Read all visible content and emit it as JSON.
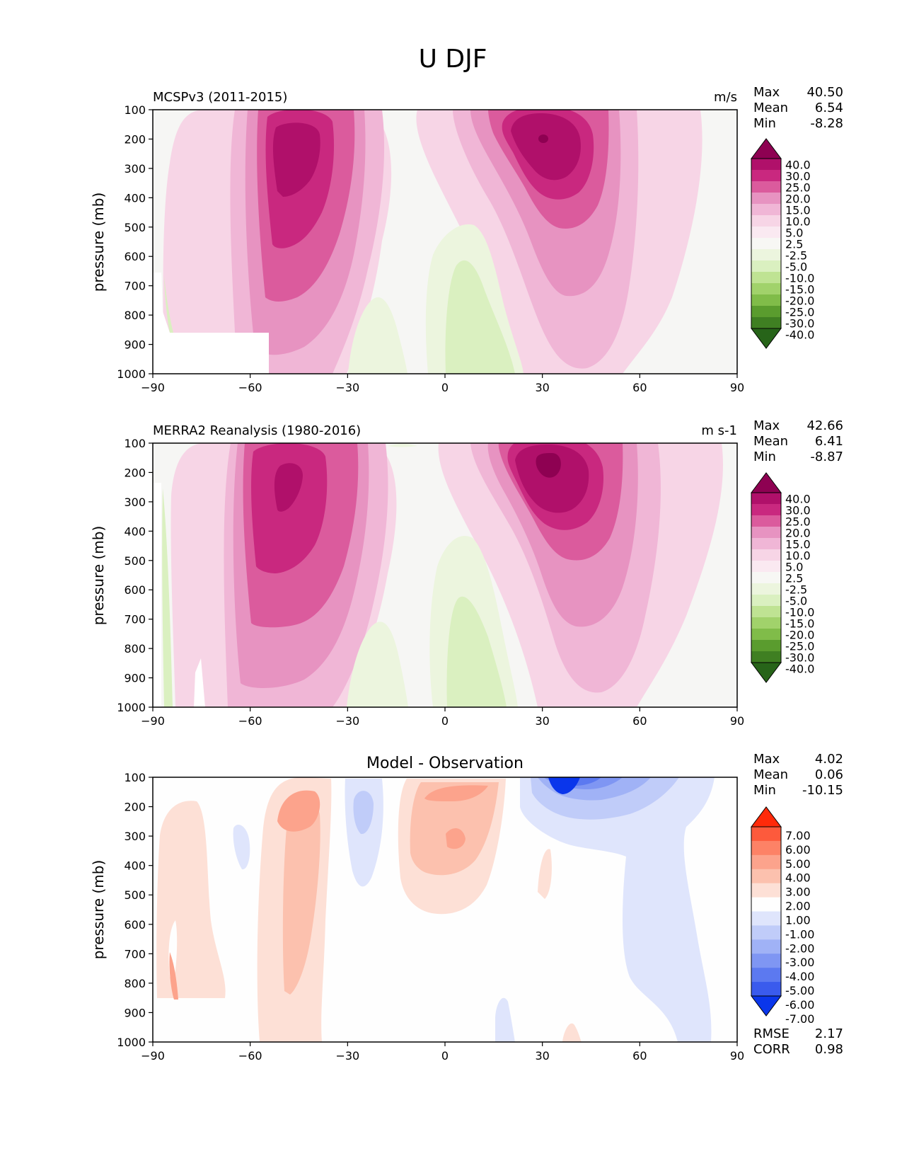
{
  "figure": {
    "title": "U DJF",
    "ylabel": "pressure (mb)",
    "xticks": [
      "−90",
      "−60",
      "−30",
      "0",
      "30",
      "60",
      "90"
    ],
    "yticks": [
      "100",
      "200",
      "300",
      "400",
      "500",
      "600",
      "700",
      "800",
      "900",
      "1000"
    ]
  },
  "panels": [
    {
      "title": "MCSPv3 (2011-2015)",
      "units": "m/s",
      "stats": [
        {
          "label": "Max",
          "value": "40.50"
        },
        {
          "label": "Mean",
          "value": "6.54"
        },
        {
          "label": "Min",
          "value": "-8.28"
        }
      ],
      "colorbar_labels": [
        "40.0",
        "30.0",
        "25.0",
        "20.0",
        "15.0",
        "10.0",
        "5.0",
        "2.5",
        "-2.5",
        "-5.0",
        "-10.0",
        "-15.0",
        "-20.0",
        "-25.0",
        "-30.0",
        "-40.0"
      ]
    },
    {
      "title": "MERRA2 Reanalysis (1980-2016)",
      "units": "m s-1",
      "stats": [
        {
          "label": "Max",
          "value": "42.66"
        },
        {
          "label": "Mean",
          "value": "6.41"
        },
        {
          "label": "Min",
          "value": "-8.87"
        }
      ],
      "colorbar_labels": [
        "40.0",
        "30.0",
        "25.0",
        "20.0",
        "15.0",
        "10.0",
        "5.0",
        "2.5",
        "-2.5",
        "-5.0",
        "-10.0",
        "-15.0",
        "-20.0",
        "-25.0",
        "-30.0",
        "-40.0"
      ]
    },
    {
      "title": "Model - Observation",
      "units": "",
      "stats": [
        {
          "label": "Max",
          "value": "4.02"
        },
        {
          "label": "Mean",
          "value": "0.06"
        },
        {
          "label": "Min",
          "value": "-10.15"
        }
      ],
      "colorbar_labels": [
        "7.00",
        "6.00",
        "5.00",
        "4.00",
        "3.00",
        "2.00",
        "1.00",
        "-1.00",
        "-2.00",
        "-3.00",
        "-4.00",
        "-5.00",
        "-6.00",
        "-7.00"
      ],
      "metrics": [
        {
          "label": "RMSE",
          "value": "2.17"
        },
        {
          "label": "CORR",
          "value": "0.98"
        }
      ]
    }
  ],
  "colors": {
    "pink_scale": [
      "#8e0152",
      "#b0106a",
      "#c9287f",
      "#db5b9d",
      "#e793c1",
      "#f0b6d6",
      "#f7d5e6",
      "#fae9f1",
      "#f7f7f4",
      "#ecf5de",
      "#daf0c0",
      "#bfe393",
      "#a1d26b",
      "#80bc49",
      "#5a9c2e",
      "#3f7f22",
      "#276419"
    ],
    "diff_scale": [
      "#ff2a0a",
      "#fd5a3c",
      "#fd8266",
      "#fca38c",
      "#fcc1ae",
      "#fde0d6",
      "#fefefe",
      "#dfe5fc",
      "#c0ccf9",
      "#a0b2f6",
      "#7f96f3",
      "#5c79f0",
      "#3a5bed",
      "#0a36eb"
    ]
  },
  "chart_data": [
    {
      "type": "heatmap",
      "title": "MCSPv3 (2011-2015)",
      "xlabel": "",
      "ylabel": "pressure (mb)",
      "units": "m/s",
      "xlim": [
        -90,
        90
      ],
      "ylim": [
        1000,
        100
      ],
      "levels": [
        -40,
        -30,
        -25,
        -20,
        -15,
        -10,
        -5,
        -2.5,
        2.5,
        5,
        10,
        15,
        20,
        25,
        30,
        40
      ],
      "features": [
        {
          "kind": "jet",
          "lat": -46,
          "plev": 230,
          "peak": 34
        },
        {
          "kind": "jet",
          "lat": 28,
          "plev": 210,
          "peak": 40.5
        },
        {
          "kind": "easterly",
          "lat": 10,
          "plev": 850,
          "peak": -8.3
        }
      ],
      "stats": {
        "max": 40.5,
        "mean": 6.54,
        "min": -8.28
      }
    },
    {
      "type": "heatmap",
      "title": "MERRA2 Reanalysis (1980-2016)",
      "xlabel": "",
      "ylabel": "pressure (mb)",
      "units": "m s-1",
      "xlim": [
        -90,
        90
      ],
      "ylim": [
        1000,
        100
      ],
      "levels": [
        -40,
        -30,
        -25,
        -20,
        -15,
        -10,
        -5,
        -2.5,
        2.5,
        5,
        10,
        15,
        20,
        25,
        30,
        40
      ],
      "features": [
        {
          "kind": "jet",
          "lat": -48,
          "plev": 240,
          "peak": 32
        },
        {
          "kind": "jet",
          "lat": 30,
          "plev": 200,
          "peak": 42.7
        },
        {
          "kind": "easterly",
          "lat": 10,
          "plev": 850,
          "peak": -8.9
        }
      ],
      "stats": {
        "max": 42.66,
        "mean": 6.41,
        "min": -8.87
      }
    },
    {
      "type": "heatmap",
      "title": "Model - Observation",
      "xlabel": "",
      "ylabel": "pressure (mb)",
      "xlim": [
        -90,
        90
      ],
      "ylim": [
        1000,
        100
      ],
      "levels": [
        -7,
        -6,
        -5,
        -4,
        -3,
        -2,
        -1,
        1,
        2,
        3,
        4,
        5,
        6,
        7
      ],
      "features": [
        {
          "kind": "positive",
          "lat": -45,
          "plev": 200,
          "peak": 4.0
        },
        {
          "kind": "positive",
          "lat": 5,
          "plev": 320,
          "peak": 3.5
        },
        {
          "kind": "negative",
          "lat": 37,
          "plev": 110,
          "peak": -10.15
        },
        {
          "kind": "negative",
          "lat": -25,
          "plev": 220,
          "peak": -3
        }
      ],
      "stats": {
        "max": 4.02,
        "mean": 0.06,
        "min": -10.15,
        "rmse": 2.17,
        "corr": 0.98
      }
    }
  ]
}
